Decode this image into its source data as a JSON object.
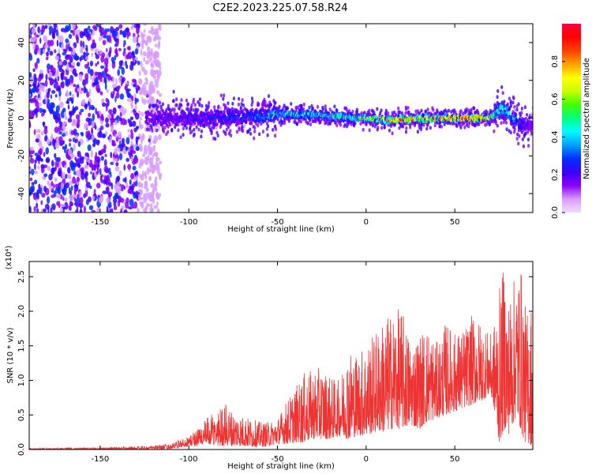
{
  "figure_title": "C2E2.2023.225.07.58.R24",
  "colors": {
    "snr_line": "#ee3333",
    "background": "#ffffff",
    "colormap": [
      "#f3dcff",
      "#d79cff",
      "#8a00ff",
      "#3a00ff",
      "#0030ff",
      "#00a0ff",
      "#00ffff",
      "#00ff80",
      "#40ff00",
      "#c8ff00",
      "#ffff00",
      "#ffa000",
      "#ff4000",
      "#ff0000",
      "#ff0040"
    ]
  },
  "chart_data": [
    {
      "type": "heatmap",
      "xlabel": "Height of straight line (km)",
      "ylabel": "Frequency (Hz)",
      "xlim": [
        -190,
        94
      ],
      "ylim": [
        -50,
        50
      ],
      "x_ticks": [
        -150,
        -100,
        -50,
        0,
        50
      ],
      "x_tick_labels": [
        "-150",
        "-100",
        "-50",
        "0",
        "50"
      ],
      "y_ticks": [
        -40,
        -20,
        0,
        20,
        40
      ],
      "y_tick_labels": [
        "-40",
        "-20",
        "0",
        "20",
        "40"
      ],
      "colorbar": {
        "label": "Normalized spectral amplitude",
        "range": [
          0,
          1
        ],
        "ticks": [
          0,
          0.2,
          0.4,
          0.6,
          0.8
        ],
        "tick_labels": [
          "0.0",
          "0.2",
          "0.4",
          "0.6",
          "0.8"
        ]
      },
      "ridge": {
        "x": [
          -120,
          -100,
          -80,
          -60,
          -50,
          -40,
          -30,
          -20,
          -10,
          0,
          10,
          20,
          30,
          40,
          50,
          60,
          68,
          72,
          76,
          80,
          85,
          90,
          94
        ],
        "center_hz": [
          0,
          0,
          0,
          1,
          2,
          2,
          2,
          1,
          0.5,
          0,
          -1,
          -1,
          -0.5,
          0,
          0,
          0,
          0,
          2,
          5,
          3,
          -2,
          -5,
          -3
        ],
        "peak_amplitude": [
          0.2,
          0.25,
          0.3,
          0.35,
          0.45,
          0.5,
          0.55,
          0.5,
          0.6,
          0.7,
          0.75,
          0.95,
          0.8,
          0.85,
          0.95,
          0.95,
          0.9,
          0.6,
          0.5,
          0.45,
          0.35,
          0.25,
          0.2
        ]
      },
      "noise_region": {
        "x_range": [
          -190,
          -122
        ],
        "freq_range": [
          -50,
          50
        ],
        "amplitude_range": [
          0.05,
          0.3
        ]
      }
    },
    {
      "type": "line",
      "xlabel": "Height of straight line (km)",
      "ylabel": "SNR (10 * v/v)",
      "y_multiplier": "(x10⁴)",
      "xlim": [
        -190,
        94
      ],
      "ylim": [
        0,
        2.72
      ],
      "x_ticks": [
        -150,
        -100,
        -50,
        0,
        50
      ],
      "x_tick_labels": [
        "-150",
        "-100",
        "-50",
        "0",
        "50"
      ],
      "y_ticks": [
        0,
        0.5,
        1.0,
        1.5,
        2.0,
        2.5
      ],
      "y_tick_labels": [
        "0.0",
        "0.5",
        "1.0",
        "1.5",
        "2.0",
        "2.5"
      ],
      "envelope": {
        "x": [
          -190,
          -150,
          -125,
          -110,
          -100,
          -95,
          -90,
          -85,
          -80,
          -75,
          -70,
          -65,
          -60,
          -55,
          -50,
          -45,
          -40,
          -35,
          -30,
          -25,
          -20,
          -15,
          -10,
          -5,
          0,
          5,
          10,
          15,
          20,
          25,
          30,
          35,
          40,
          45,
          50,
          55,
          60,
          65,
          70,
          72,
          75,
          78,
          80,
          85,
          88,
          90,
          94
        ],
        "max": [
          0.02,
          0.03,
          0.05,
          0.08,
          0.2,
          0.32,
          0.45,
          0.55,
          0.7,
          0.55,
          0.5,
          0.45,
          0.4,
          0.4,
          0.45,
          0.7,
          0.9,
          1.1,
          1.15,
          1.2,
          1.05,
          1.0,
          1.5,
          1.4,
          1.55,
          1.7,
          1.9,
          2.0,
          2.05,
          1.6,
          1.7,
          1.8,
          1.55,
          1.85,
          1.7,
          1.75,
          1.95,
          1.85,
          1.65,
          1.8,
          2.3,
          2.72,
          2.2,
          2.6,
          2.65,
          2.0,
          2.2
        ],
        "min": [
          0.0,
          0.0,
          0.0,
          0.01,
          0.05,
          0.05,
          0.08,
          0.05,
          0.05,
          0.05,
          0.05,
          0.04,
          0.04,
          0.05,
          0.08,
          0.08,
          0.1,
          0.1,
          0.15,
          0.15,
          0.15,
          0.2,
          0.15,
          0.2,
          0.2,
          0.25,
          0.25,
          0.3,
          0.3,
          0.35,
          0.3,
          0.4,
          0.45,
          0.5,
          0.55,
          0.6,
          0.65,
          0.7,
          0.8,
          0.6,
          0.1,
          0.3,
          0.2,
          0.5,
          0.2,
          0.1,
          0.05
        ]
      }
    }
  ]
}
